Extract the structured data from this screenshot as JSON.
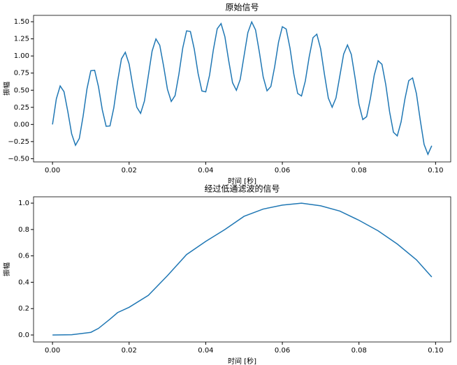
{
  "chart_data": [
    {
      "type": "line",
      "title": "原始信号",
      "xlabel": "时间 [秒]",
      "ylabel": "振幅",
      "x": [
        0,
        0.001,
        0.002,
        0.003,
        0.004,
        0.005,
        0.006,
        0.007,
        0.008,
        0.009,
        0.01,
        0.011,
        0.012,
        0.013,
        0.014,
        0.015,
        0.016,
        0.017,
        0.018,
        0.019,
        0.02,
        0.021,
        0.022,
        0.023,
        0.024,
        0.025,
        0.026,
        0.027,
        0.028,
        0.029,
        0.03,
        0.031,
        0.032,
        0.033,
        0.034,
        0.035,
        0.036,
        0.037,
        0.038,
        0.039,
        0.04,
        0.041,
        0.042,
        0.043,
        0.044,
        0.045,
        0.046,
        0.047,
        0.048,
        0.049,
        0.05,
        0.051,
        0.052,
        0.053,
        0.054,
        0.055,
        0.056,
        0.057,
        0.058,
        0.059,
        0.06,
        0.061,
        0.062,
        0.063,
        0.064,
        0.065,
        0.066,
        0.067,
        0.068,
        0.069,
        0.07,
        0.071,
        0.072,
        0.073,
        0.074,
        0.075,
        0.076,
        0.077,
        0.078,
        0.079,
        0.08,
        0.081,
        0.082,
        0.083,
        0.084,
        0.085,
        0.086,
        0.087,
        0.088,
        0.089,
        0.09,
        0.091,
        0.092,
        0.093,
        0.094,
        0.095,
        0.096,
        0.097,
        0.098,
        0.099
      ],
      "series": [
        {
          "color": "#1f77b4",
          "values": [
            0,
            0.374,
            0.562,
            0.479,
            0.188,
            -0.138,
            -0.304,
            -0.204,
            0.124,
            0.52,
            0.785,
            0.791,
            0.552,
            0.213,
            -0.027,
            -0.022,
            0.241,
            0.633,
            0.958,
            1.053,
            0.882,
            0.55,
            0.252,
            0.162,
            0.342,
            0.707,
            1.071,
            1.249,
            1.156,
            0.853,
            0.515,
            0.336,
            0.422,
            0.736,
            1.117,
            1.367,
            1.357,
            1.102,
            0.746,
            0.489,
            0.476,
            0.719,
            1.093,
            1.398,
            1.473,
            1.282,
            0.929,
            0.61,
            0.499,
            0.657,
            1,
            1.342,
            1.497,
            1.381,
            1.055,
            0.694,
            0.491,
            0.554,
            0.844,
            1.201,
            1.427,
            1.393,
            1.114,
            0.734,
            0.452,
            0.416,
            0.635,
            0.985,
            1.267,
            1.318,
            1.103,
            0.728,
            0.385,
            0.251,
            0.387,
            0.707,
            1.027,
            1.16,
            1.023,
            0.676,
            0.294,
            0.071,
            0.114,
            0.385,
            0.723,
            0.93,
            0.878,
            0.581,
            0.184,
            -0.114,
            -0.167,
            0.038,
            0.373,
            0.64,
            0.679,
            0.45,
            0.063,
            -0.291,
            -0.436,
            -0.311
          ]
        }
      ],
      "xlim": [
        -0.00495,
        0.10395
      ],
      "xticks": [
        {
          "value": 0,
          "label": "0.00"
        },
        {
          "value": 0.02,
          "label": "0.02"
        },
        {
          "value": 0.04,
          "label": "0.04"
        },
        {
          "value": 0.06,
          "label": "0.06"
        },
        {
          "value": 0.08,
          "label": "0.08"
        },
        {
          "value": 0.1,
          "label": "0.10"
        }
      ],
      "ylim": [
        -0.547,
        1.593
      ],
      "yticks": [
        {
          "value": -0.5,
          "label": "−0.50"
        },
        {
          "value": -0.25,
          "label": "−0.25"
        },
        {
          "value": 0,
          "label": "0.00"
        },
        {
          "value": 0.25,
          "label": "0.25"
        },
        {
          "value": 0.5,
          "label": "0.50"
        },
        {
          "value": 0.75,
          "label": "0.75"
        },
        {
          "value": 1,
          "label": "1.00"
        },
        {
          "value": 1.25,
          "label": "1.25"
        },
        {
          "value": 1.5,
          "label": "1.50"
        }
      ],
      "grid": false
    },
    {
      "type": "line",
      "title": "经过低通滤波的信号",
      "xlabel": "时间 [秒]",
      "ylabel": "振幅",
      "x": [
        0,
        0.005,
        0.01,
        0.012,
        0.015,
        0.017,
        0.02,
        0.025,
        0.03,
        0.035,
        0.04,
        0.045,
        0.05,
        0.055,
        0.06,
        0.065,
        0.07,
        0.075,
        0.08,
        0.085,
        0.09,
        0.095,
        0.099
      ],
      "series": [
        {
          "color": "#1f77b4",
          "values": [
            0,
            0.002,
            0.02,
            0.05,
            0.12,
            0.17,
            0.21,
            0.3,
            0.45,
            0.61,
            0.71,
            0.8,
            0.9,
            0.955,
            0.985,
            1,
            0.98,
            0.94,
            0.87,
            0.79,
            0.69,
            0.57,
            0.44
          ]
        }
      ],
      "xlim": [
        -0.00495,
        0.10395
      ],
      "xticks": [
        {
          "value": 0,
          "label": "0.00"
        },
        {
          "value": 0.02,
          "label": "0.02"
        },
        {
          "value": 0.04,
          "label": "0.04"
        },
        {
          "value": 0.06,
          "label": "0.06"
        },
        {
          "value": 0.08,
          "label": "0.08"
        },
        {
          "value": 0.1,
          "label": "0.10"
        }
      ],
      "ylim": [
        -0.053,
        1.048
      ],
      "yticks": [
        {
          "value": 0,
          "label": "0.0"
        },
        {
          "value": 0.2,
          "label": "0.2"
        },
        {
          "value": 0.4,
          "label": "0.4"
        },
        {
          "value": 0.6,
          "label": "0.6"
        },
        {
          "value": 0.8,
          "label": "0.8"
        },
        {
          "value": 1,
          "label": "1.0"
        }
      ],
      "grid": false
    }
  ]
}
